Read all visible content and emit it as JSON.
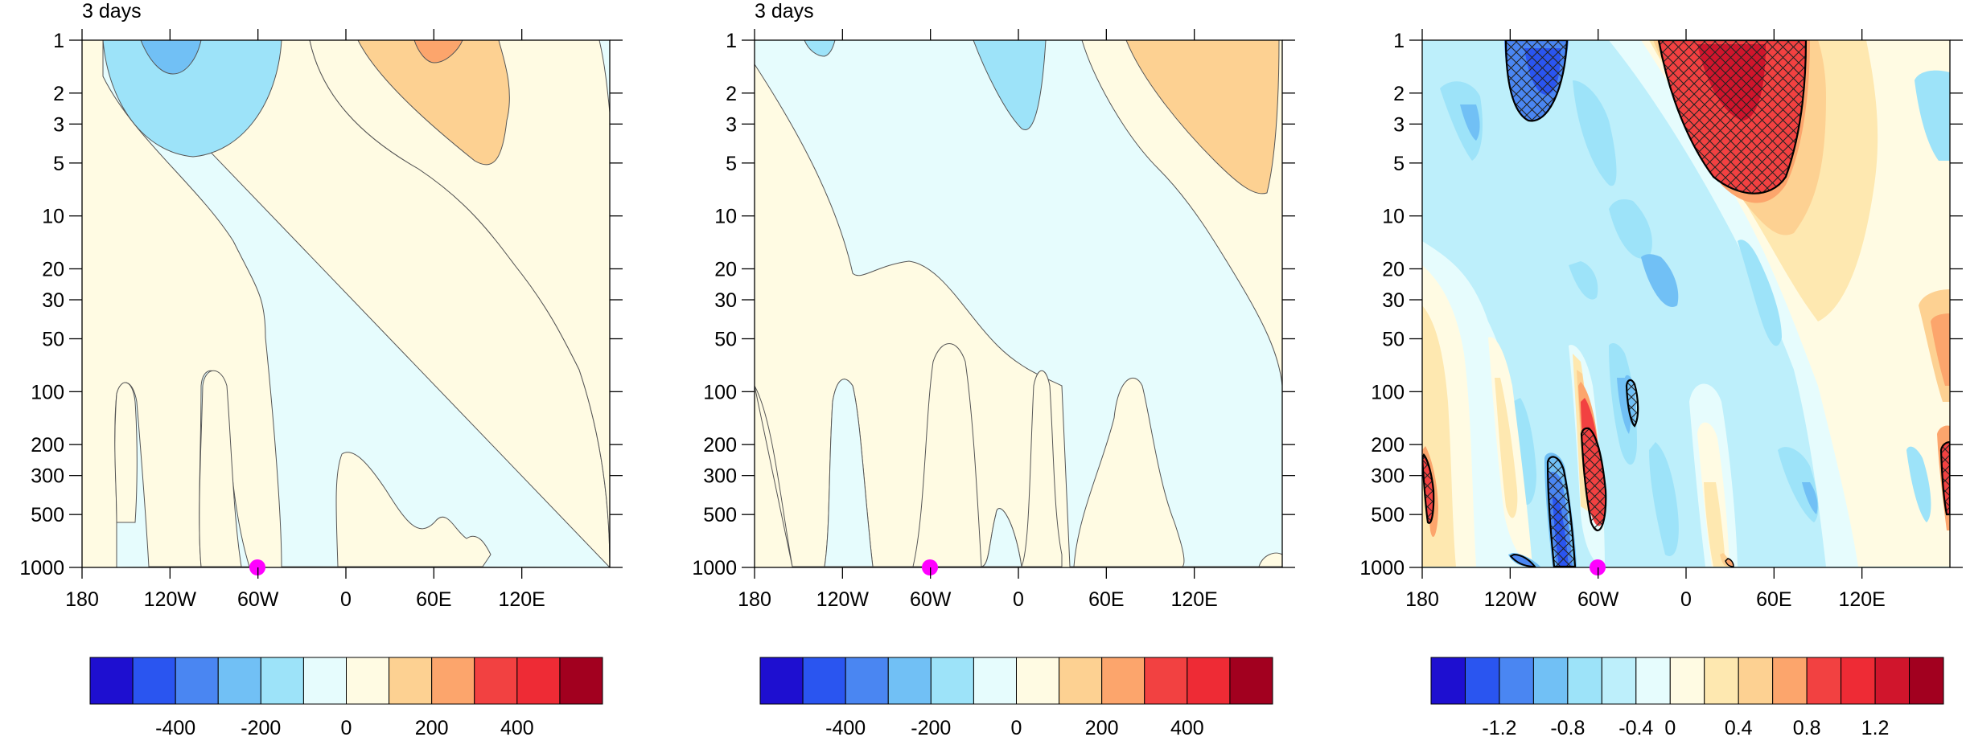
{
  "figure": {
    "panel_count": 3
  },
  "chart_data": [
    {
      "type": "heatmap",
      "title": "3 days",
      "xlabel": "",
      "ylabel": "",
      "x_ticks": [
        "180",
        "120W",
        "60W",
        "0",
        "60E",
        "120E"
      ],
      "y_ticks": [
        "1",
        "2",
        "3",
        "5",
        "10",
        "20",
        "30",
        "50",
        "100",
        "200",
        "300",
        "500",
        "1000"
      ],
      "y_scale": "log",
      "y_inverted": true,
      "xlim": [
        -180,
        180
      ],
      "ylim": [
        1000,
        1
      ],
      "marker": {
        "lon": -60,
        "level": 1000,
        "color": "#ff00ff"
      },
      "colorbar": {
        "colors": [
          "#1e0fd0",
          "#2a55f0",
          "#4a86f2",
          "#71c0f5",
          "#9de3f9",
          "#e6fcfd",
          "#fffbe3",
          "#fdd192",
          "#fca56c",
          "#f24141",
          "#ee2b35",
          "#a2001f"
        ],
        "tick_labels": [
          "-400",
          "-200",
          "0",
          "200",
          "400"
        ]
      },
      "grid": false,
      "legend": "bottom"
    },
    {
      "type": "heatmap",
      "title": "3 days",
      "xlabel": "",
      "ylabel": "",
      "x_ticks": [
        "180",
        "120W",
        "60W",
        "0",
        "60E",
        "120E"
      ],
      "y_ticks": [
        "1",
        "2",
        "3",
        "5",
        "10",
        "20",
        "30",
        "50",
        "100",
        "200",
        "300",
        "500",
        "1000"
      ],
      "y_scale": "log",
      "y_inverted": true,
      "xlim": [
        -180,
        180
      ],
      "ylim": [
        1000,
        1
      ],
      "marker": {
        "lon": -60,
        "level": 1000,
        "color": "#ff00ff"
      },
      "colorbar": {
        "colors": [
          "#1e0fd0",
          "#2a55f0",
          "#4a86f2",
          "#71c0f5",
          "#9de3f9",
          "#e6fcfd",
          "#fffbe3",
          "#fdd192",
          "#fca56c",
          "#f24141",
          "#ee2b35",
          "#a2001f"
        ],
        "tick_labels": [
          "-400",
          "-200",
          "0",
          "200",
          "400"
        ]
      },
      "grid": false,
      "legend": "bottom"
    },
    {
      "type": "heatmap",
      "title": "",
      "xlabel": "",
      "ylabel": "",
      "x_ticks": [
        "180",
        "120W",
        "60W",
        "0",
        "60E",
        "120E"
      ],
      "y_ticks": [
        "1",
        "2",
        "3",
        "5",
        "10",
        "20",
        "30",
        "50",
        "100",
        "200",
        "300",
        "500",
        "1000"
      ],
      "y_scale": "log",
      "y_inverted": true,
      "xlim": [
        -180,
        180
      ],
      "ylim": [
        1000,
        1
      ],
      "marker": {
        "lon": -60,
        "level": 1000,
        "color": "#ff00ff"
      },
      "hatching": "significance regions outlined in black",
      "colorbar": {
        "colors": [
          "#1e0fd0",
          "#2a55f0",
          "#4a86f2",
          "#71c0f5",
          "#9de3f9",
          "#bdeffb",
          "#e6fcfd",
          "#fffbe3",
          "#fee8b0",
          "#fdd192",
          "#fca56c",
          "#f24141",
          "#ee2b35",
          "#d0152c",
          "#a2001f"
        ],
        "tick_labels": [
          "-1.2",
          "-0.8",
          "-0.4",
          "0",
          "0.4",
          "0.8",
          "1.2"
        ]
      },
      "grid": false,
      "legend": "bottom"
    }
  ]
}
